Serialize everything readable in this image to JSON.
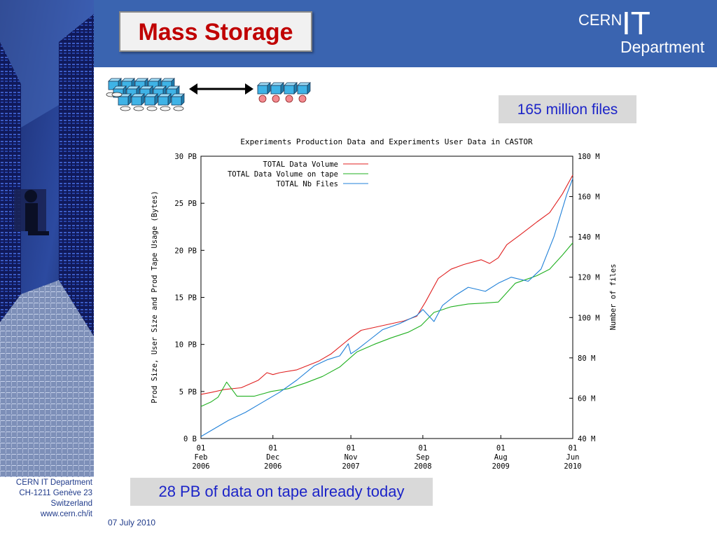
{
  "slide": {
    "title": "Mass Storage",
    "callout_files": "165 million files",
    "callout_tape": "28 PB of data on tape already today",
    "date": "07 July 2010"
  },
  "logo": {
    "cern": "CERN",
    "it": "IT",
    "department": "Department"
  },
  "footer": {
    "line1": "CERN IT Department",
    "line2": "CH-1211 Genève 23",
    "line3": "Switzerland",
    "line4": "www.cern.ch/it"
  },
  "colors": {
    "header": "#3a64b0",
    "title": "#c00000",
    "callout_text": "#1c24c8",
    "disk_icon": "#3fb3e6",
    "tape_reel": "#f48a90"
  },
  "icons": [
    "disk-server-cluster-icon",
    "double-arrow-icon",
    "tape-drive-icon"
  ],
  "chart_data": {
    "type": "line",
    "title": "Experiments Production Data and Experiments User Data in CASTOR",
    "ylabel_left": "Prod Size, User Size and Prod Tape Usage (Bytes)",
    "ylabel_right": "Number of files",
    "x_ticks": [
      {
        "day": "01",
        "month": "Feb",
        "year": "2006",
        "value": 2006.08
      },
      {
        "day": "01",
        "month": "Dec",
        "year": "2006",
        "value": 2006.92
      },
      {
        "day": "01",
        "month": "Nov",
        "year": "2007",
        "value": 2007.83
      },
      {
        "day": "01",
        "month": "Sep",
        "year": "2008",
        "value": 2008.67
      },
      {
        "day": "01",
        "month": "Aug",
        "year": "2009",
        "value": 2009.58
      },
      {
        "day": "01",
        "month": "Jun",
        "year": "2010",
        "value": 2010.42
      }
    ],
    "xlim": [
      2006.08,
      2010.42
    ],
    "y_left_ticks": [
      "0  B",
      "5 PB",
      "10 PB",
      "15 PB",
      "20 PB",
      "25 PB",
      "30 PB"
    ],
    "y_left_lim": [
      0,
      30
    ],
    "y_right_ticks": [
      "40 M",
      "60 M",
      "80 M",
      "100 M",
      "120 M",
      "140 M",
      "160 M",
      "180 M"
    ],
    "y_right_lim": [
      40,
      180
    ],
    "legend_position": "top-left",
    "grid": false,
    "series": [
      {
        "name": "TOTAL Data Volume",
        "color": "#e02020",
        "axis": "left",
        "x": [
          2006.08,
          2006.2,
          2006.35,
          2006.55,
          2006.75,
          2006.85,
          2006.92,
          2007.0,
          2007.2,
          2007.45,
          2007.6,
          2007.8,
          2007.95,
          2008.1,
          2008.3,
          2008.45,
          2008.6,
          2008.7,
          2008.85,
          2009.0,
          2009.15,
          2009.35,
          2009.45,
          2009.55,
          2009.65,
          2009.8,
          2010.0,
          2010.15,
          2010.3,
          2010.42
        ],
        "y": [
          4.7,
          4.9,
          5.2,
          5.4,
          6.2,
          7.0,
          6.8,
          7.0,
          7.3,
          8.2,
          9.0,
          10.5,
          11.5,
          11.8,
          12.2,
          12.5,
          13.0,
          14.5,
          17.0,
          18.0,
          18.5,
          19.0,
          18.6,
          19.2,
          20.6,
          21.6,
          23.0,
          24.0,
          26.0,
          28.0
        ]
      },
      {
        "name": "TOTAL Data Volume on tape",
        "color": "#20b020",
        "axis": "left",
        "x": [
          2006.08,
          2006.2,
          2006.28,
          2006.38,
          2006.5,
          2006.7,
          2006.9,
          2007.1,
          2007.3,
          2007.5,
          2007.7,
          2007.9,
          2008.1,
          2008.3,
          2008.5,
          2008.65,
          2008.8,
          2009.0,
          2009.2,
          2009.4,
          2009.55,
          2009.75,
          2010.0,
          2010.15,
          2010.3,
          2010.42
        ],
        "y": [
          3.4,
          3.9,
          4.4,
          6.0,
          4.5,
          4.5,
          5.0,
          5.3,
          5.9,
          6.6,
          7.6,
          9.2,
          10.0,
          10.7,
          11.3,
          12.0,
          13.4,
          14.0,
          14.3,
          14.4,
          14.5,
          16.5,
          17.3,
          18.0,
          19.5,
          20.8
        ]
      },
      {
        "name": "TOTAL Nb Files",
        "color": "#2080d8",
        "axis": "right",
        "x": [
          2006.08,
          2006.2,
          2006.4,
          2006.6,
          2006.8,
          2007.0,
          2007.2,
          2007.4,
          2007.55,
          2007.7,
          2007.8,
          2007.83,
          2007.9,
          2008.05,
          2008.2,
          2008.4,
          2008.6,
          2008.67,
          2008.8,
          2008.9,
          2009.05,
          2009.2,
          2009.4,
          2009.55,
          2009.7,
          2009.9,
          2010.05,
          2010.2,
          2010.35,
          2010.42
        ],
        "y": [
          41,
          44,
          49,
          53,
          58,
          63,
          69,
          76,
          79,
          81,
          87,
          82,
          84,
          89,
          94,
          97,
          101,
          104,
          98,
          106,
          111,
          115,
          113,
          117,
          120,
          118,
          124,
          140,
          161,
          169
        ]
      }
    ]
  }
}
